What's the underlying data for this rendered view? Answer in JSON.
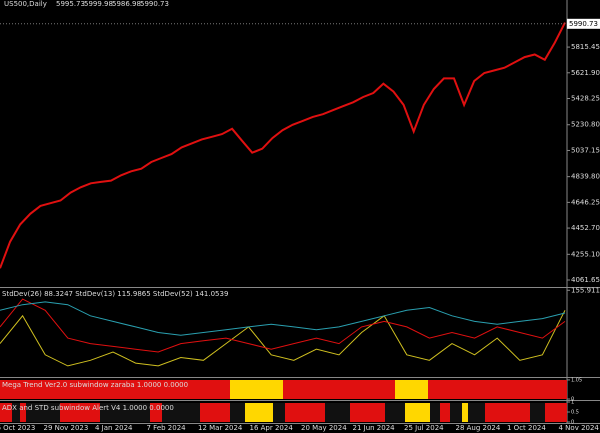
{
  "header": {
    "symbol": "US500,Daily",
    "values": [
      5995.73,
      5999.98,
      5986.98,
      5990.73
    ]
  },
  "chart_data": [
    {
      "type": "line",
      "ylim": [
        4009,
        6170
      ],
      "color": "#e01010",
      "current_price": 5990.73,
      "yticks": [
        5815.45,
        {
          "value": 5621.9,
          "label": "5621.90"
        },
        5428.25,
        {
          "value": 5230.8,
          "label": "5230.80"
        },
        5037.15,
        {
          "value": 4839.8,
          "label": "4839.80"
        },
        4646.25,
        {
          "value": 4452.7,
          "label": "4452.70"
        },
        {
          "value": 4255.1,
          "label": "4255.10"
        },
        4061.65
      ],
      "values": [
        4150,
        4350,
        4480,
        4560,
        4620,
        4640,
        4660,
        4720,
        4760,
        4790,
        4800,
        4810,
        4850,
        4880,
        4900,
        4950,
        4980,
        5010,
        5060,
        5090,
        5120,
        5140,
        5160,
        5200,
        5110,
        5020,
        5050,
        5130,
        5190,
        5230,
        5260,
        5290,
        5310,
        5340,
        5370,
        5400,
        5440,
        5470,
        5540,
        5480,
        5380,
        5180,
        5380,
        5500,
        5580,
        5580,
        5380,
        5560,
        5620,
        5640,
        5660,
        5700,
        5740,
        5760,
        5720,
        5850,
        6000
      ]
    },
    {
      "type": "line",
      "title": "StdDev(26) 88.3247 StdDev(13) 115.9865 StdDev(52) 141.0539",
      "ylim": [
        0,
        160
      ],
      "yticks": [
        155.9114
      ],
      "series": [
        {
          "color": "#d0c020",
          "values": [
            60,
            110,
            40,
            20,
            30,
            45,
            25,
            20,
            35,
            30,
            60,
            90,
            40,
            30,
            50,
            40,
            80,
            110,
            40,
            30,
            60,
            40,
            70,
            30,
            40,
            120
          ]
        },
        {
          "color": "#e01010",
          "values": [
            90,
            140,
            120,
            70,
            60,
            55,
            50,
            45,
            60,
            65,
            70,
            60,
            50,
            60,
            70,
            60,
            90,
            100,
            90,
            70,
            80,
            70,
            90,
            80,
            70,
            100
          ]
        },
        {
          "color": "#2aa0b0",
          "values": [
            120,
            130,
            135,
            130,
            110,
            100,
            90,
            80,
            75,
            80,
            85,
            90,
            95,
            90,
            85,
            90,
            100,
            110,
            120,
            125,
            110,
            100,
            95,
            100,
            105,
            115
          ]
        }
      ]
    },
    {
      "type": "state",
      "title": "Mega Trend Ver2.0 subwindow zaraba 1.0000 0.0000",
      "ylim": [
        0,
        1.1
      ],
      "yticks": [
        1.05,
        0
      ]
    },
    {
      "type": "state",
      "title": "ADX and STD subwindow Alert V4 1.0000 0.0000",
      "ylim": [
        0,
        1
      ],
      "yticks": [
        1,
        0.5,
        0
      ]
    }
  ],
  "date_labels": [
    "26 Oct 2023",
    "29 Nov 2023",
    "4 Jan 2024",
    "7 Feb 2024",
    "12 Mar 2024",
    "16 Apr 2024",
    "20 May 2024",
    "21 Jun 2024",
    "25 Jul 2024",
    "28 Aug 2024",
    "1 Oct 2024",
    "4 Nov 2024"
  ]
}
